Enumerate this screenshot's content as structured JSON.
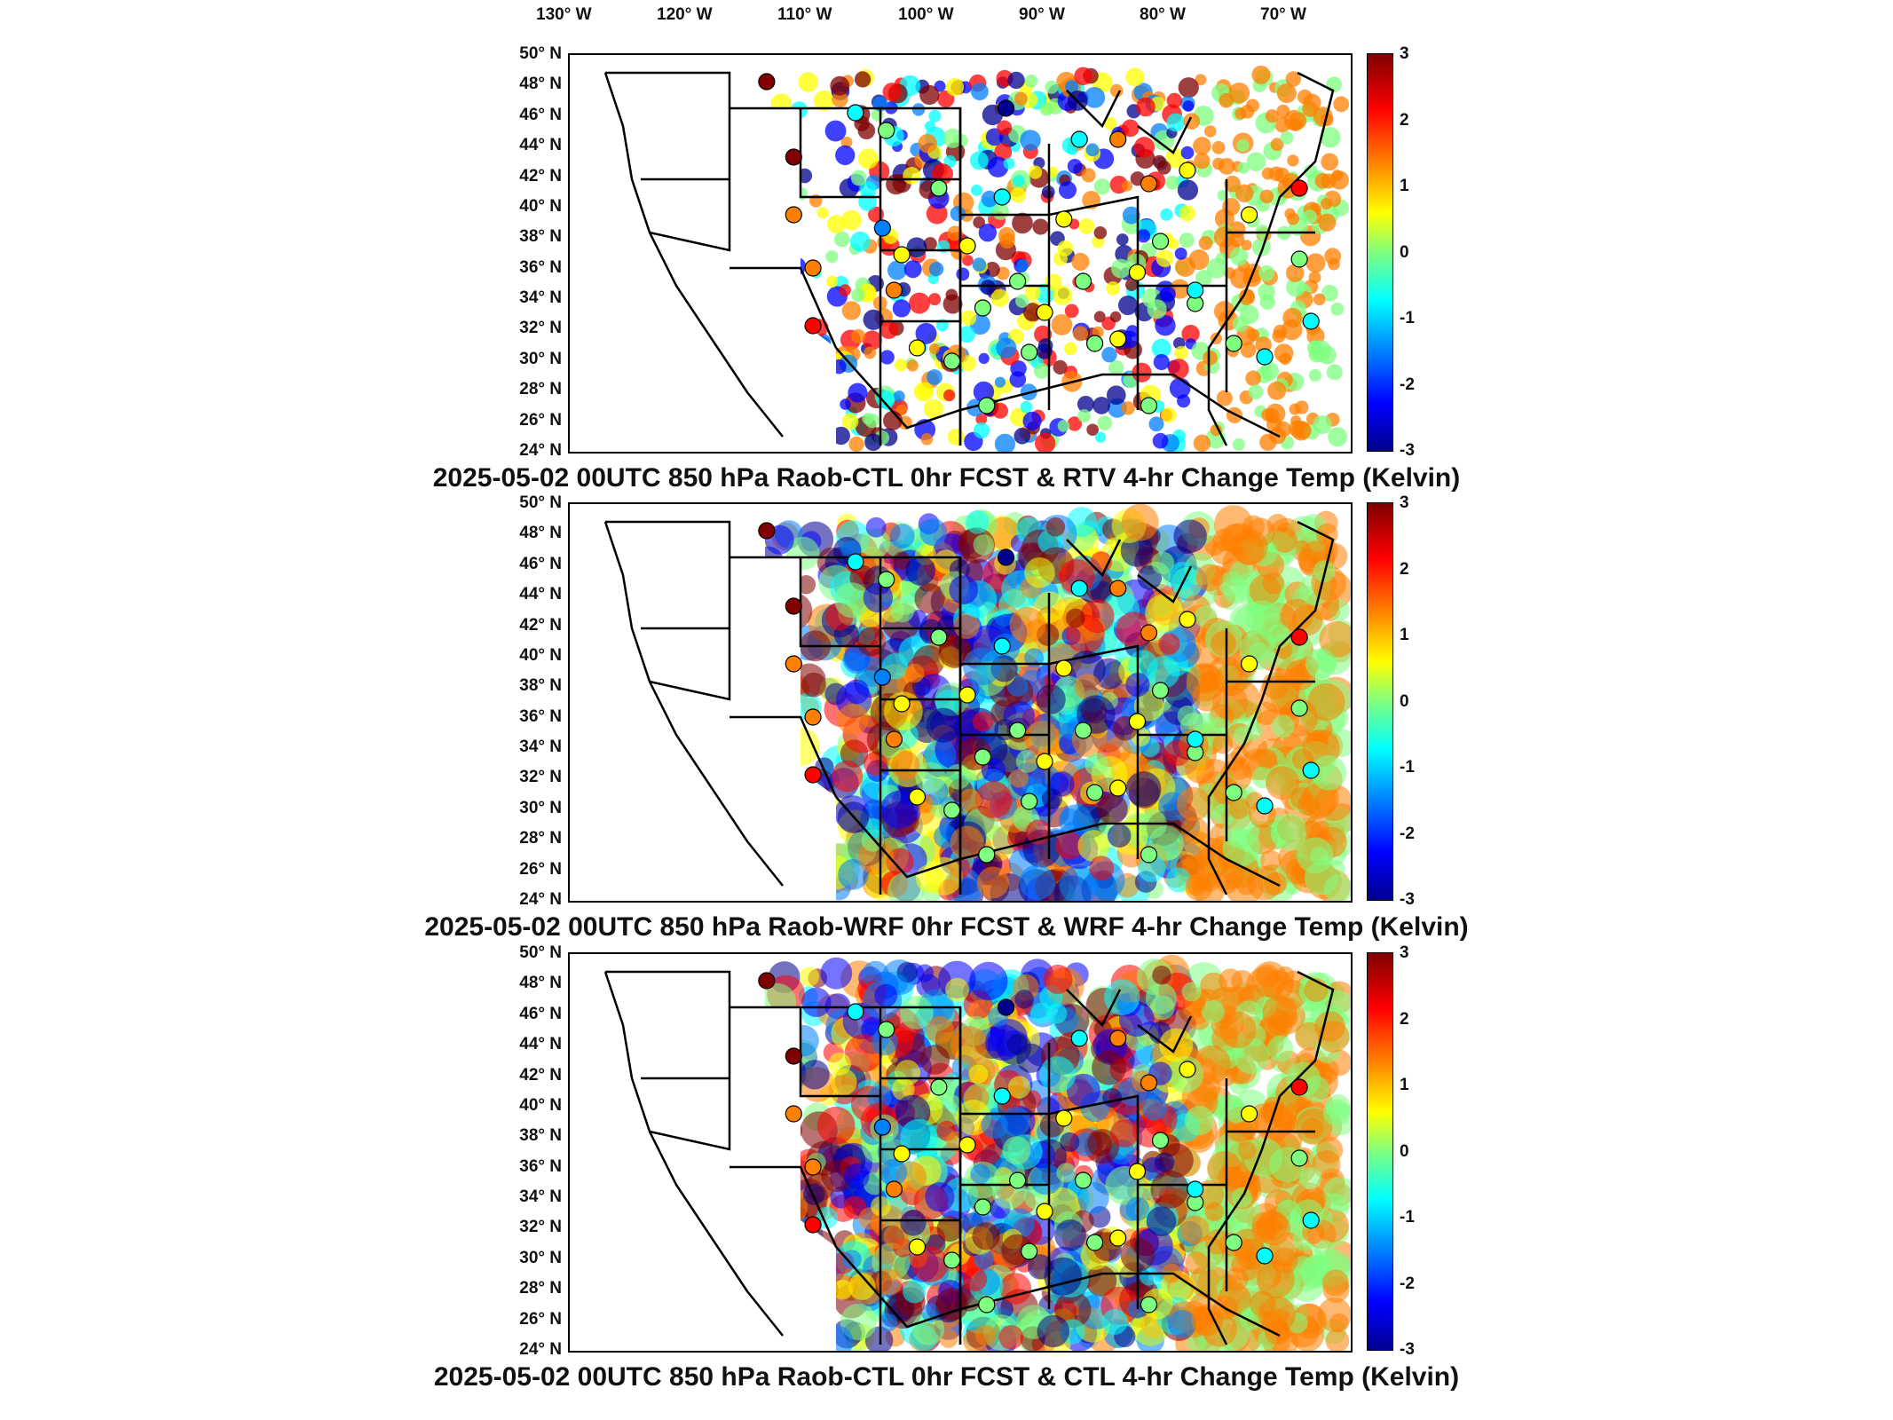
{
  "longitude_labels": [
    "130° W",
    "120° W",
    "110° W",
    "100° W",
    "90° W",
    "80° W",
    "70° W"
  ],
  "latitude_labels": [
    "50° N",
    "48° N",
    "46° N",
    "44° N",
    "42° N",
    "40° N",
    "38° N",
    "36° N",
    "34° N",
    "32° N",
    "30° N",
    "28° N",
    "26° N",
    "24° N"
  ],
  "colorbar": {
    "ticks": [
      "3",
      "2",
      "1",
      "0",
      "-1",
      "-2",
      "-3"
    ],
    "colormap": "jet",
    "range": [
      -3,
      3
    ]
  },
  "panels": [
    {
      "title": "2025-05-02 00UTC 850 hPa Raob-CTL 0hr FCST & RTV 4-hr Change Temp (Kelvin)"
    },
    {
      "title": "2025-05-02 00UTC 850 hPa Raob-WRF 0hr FCST & WRF 4-hr Change Temp (Kelvin)"
    },
    {
      "title": "2025-05-02 00UTC 850 hPa Raob-CTL 0hr FCST & CTL 4-hr Change Temp (Kelvin)"
    }
  ],
  "colors": {
    "warm": "#d7191c",
    "cool": "#2c7bb6",
    "neutral": "#7fff7f"
  }
}
